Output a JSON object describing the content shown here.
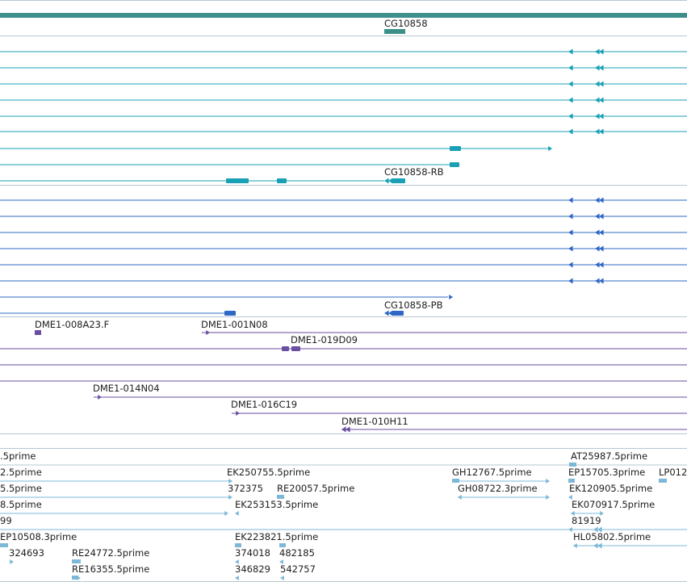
{
  "colors": {
    "gene_summary": "#3c8f8a",
    "transcript": "#1aa0b4",
    "protein": "#2f68c4",
    "bac": "#6a4ea0",
    "est": "#7db8d8",
    "divider": "#b7c8cf"
  },
  "labels": {
    "gene": "CG10858",
    "transcript_rb": "CG10858-RB",
    "protein_pb": "CG10858-PB",
    "bac_008a23": "DME1-008A23.F",
    "bac_001n08": "DME1-001N08",
    "bac_019d09": "DME1-019D09",
    "bac_014n04": "DME1-014N04",
    "bac_016c19": "DME1-016C19",
    "bac_010h11": "DME1-010H11",
    "est_5prime_cut": ".5prime",
    "est_at25987": "AT25987.5prime",
    "est_2_5prime": "2.5prime",
    "est_ek250755": "EK250755.5prime",
    "est_gh12767": "GH12767.5prime",
    "est_ep15705": "EP15705.3prime",
    "est_lp012": "LP012",
    "est_5_5prime": "5.5prime",
    "est_372375": "372375",
    "est_re20057": "RE20057.5prime",
    "est_gh08722": "GH08722.3prime",
    "est_ek120905": "EK120905.5prime",
    "est_8_5prime": "8.5prime",
    "est_ek253153": "EK253153.5prime",
    "est_ek070917": "EK070917.5prime",
    "est_99": "99",
    "est_81919": "81919",
    "est_ep10508": "EP10508.3prime",
    "est_ek223821": "EK223821.5prime",
    "est_hl05802": "HL05802.5prime",
    "est_324693": "324693",
    "est_re24772": "RE24772.5prime",
    "est_374018": "374018",
    "est_482185": "482185",
    "est_re16355": "RE16355.5prime",
    "est_346829": "346829",
    "est_542757": "542757"
  }
}
